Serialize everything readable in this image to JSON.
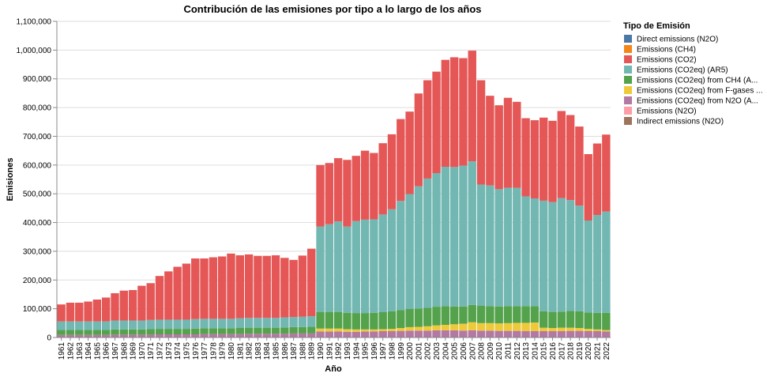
{
  "chart_data": {
    "type": "bar",
    "stacked": true,
    "title": "Contribución de las emisiones por tipo a lo largo de los años",
    "xlabel": "Año",
    "ylabel": "Emisiones",
    "ylim": [
      0,
      1100000
    ],
    "yticks": [
      "0",
      "100,000",
      "200,000",
      "300,000",
      "400,000",
      "500,000",
      "600,000",
      "700,000",
      "800,000",
      "900,000",
      "1,000,000",
      "1,100,000"
    ],
    "grid": true,
    "legend_title": "Tipo de Emisión",
    "legend_position": "right",
    "categories": [
      "1961",
      "1962",
      "1963",
      "1964",
      "1965",
      "1966",
      "1967",
      "1968",
      "1969",
      "1970",
      "1971",
      "1972",
      "1973",
      "1974",
      "1975",
      "1976",
      "1977",
      "1978",
      "1979",
      "1980",
      "1981",
      "1982",
      "1983",
      "1984",
      "1985",
      "1986",
      "1987",
      "1988",
      "1989",
      "1990",
      "1991",
      "1992",
      "1993",
      "1994",
      "1995",
      "1996",
      "1997",
      "1998",
      "1999",
      "2000",
      "2001",
      "2002",
      "2003",
      "2004",
      "2005",
      "2006",
      "2007",
      "2008",
      "2009",
      "2010",
      "2011",
      "2012",
      "2013",
      "2014",
      "2015",
      "2016",
      "2017",
      "2018",
      "2019",
      "2020",
      "2021",
      "2022"
    ],
    "series": [
      {
        "name": "Direct emissions (N2O)",
        "color": "#4c78a8",
        "values": [
          0,
          0,
          0,
          0,
          0,
          0,
          0,
          0,
          0,
          0,
          0,
          0,
          0,
          0,
          0,
          0,
          0,
          0,
          0,
          0,
          0,
          0,
          0,
          0,
          0,
          0,
          0,
          0,
          0,
          0,
          0,
          0,
          0,
          0,
          0,
          0,
          0,
          0,
          0,
          0,
          0,
          0,
          0,
          0,
          0,
          0,
          0,
          0,
          0,
          0,
          0,
          0,
          0,
          0,
          0,
          0,
          0,
          0,
          0,
          0,
          0,
          0
        ]
      },
      {
        "name": "Emissions (CH4)",
        "color": "#f58518",
        "values": [
          0,
          0,
          0,
          0,
          0,
          0,
          0,
          0,
          0,
          0,
          0,
          0,
          0,
          0,
          0,
          0,
          0,
          0,
          0,
          0,
          0,
          0,
          0,
          0,
          0,
          0,
          0,
          0,
          0,
          0,
          0,
          0,
          0,
          0,
          0,
          0,
          0,
          0,
          0,
          0,
          0,
          0,
          0,
          0,
          0,
          0,
          0,
          0,
          0,
          0,
          0,
          0,
          0,
          0,
          0,
          0,
          0,
          0,
          0,
          0,
          0,
          0
        ]
      },
      {
        "name": "Emissions (CO2)",
        "color": "#e45756",
        "values": [
          59000,
          65000,
          65000,
          69000,
          76000,
          83000,
          95000,
          104000,
          106000,
          121000,
          128000,
          152000,
          168000,
          184000,
          195000,
          211000,
          210000,
          214000,
          217000,
          227000,
          219000,
          221000,
          216000,
          216000,
          218000,
          207000,
          199000,
          213000,
          235000,
          214000,
          213000,
          220000,
          232000,
          227000,
          240000,
          231000,
          248000,
          261000,
          285000,
          287000,
          323000,
          342000,
          353000,
          372000,
          382000,
          374000,
          385000,
          363000,
          312000,
          292000,
          313000,
          299000,
          272000,
          272000,
          289000,
          283000,
          303000,
          296000,
          275000,
          231000,
          249000,
          268000
        ]
      },
      {
        "name": "Emissions (CO2eq) (AR5)",
        "color": "#72b7b2",
        "values": [
          30000,
          30000,
          30000,
          30000,
          30000,
          30000,
          31000,
          31000,
          31000,
          31000,
          32000,
          32000,
          32000,
          32000,
          32000,
          33000,
          33000,
          33000,
          33000,
          33000,
          34000,
          34000,
          34000,
          34000,
          34000,
          35000,
          35000,
          36000,
          37000,
          297000,
          305000,
          315000,
          300000,
          320000,
          325000,
          325000,
          340000,
          355000,
          380000,
          400000,
          425000,
          450000,
          465000,
          485000,
          485000,
          490000,
          500000,
          422000,
          420000,
          408000,
          412000,
          412000,
          382000,
          375000,
          385000,
          382000,
          395000,
          386000,
          368000,
          320000,
          340000,
          352000
        ]
      },
      {
        "name": "Emissions (CO2eq) from CH4 (AR5)",
        "color": "#54a24b",
        "values": [
          17000,
          17000,
          17000,
          17000,
          17000,
          17000,
          18000,
          18000,
          18000,
          18000,
          19000,
          19000,
          19000,
          19000,
          19000,
          20000,
          20000,
          20000,
          20000,
          20000,
          21000,
          21000,
          21000,
          21000,
          21000,
          22000,
          22000,
          22000,
          23000,
          58000,
          58000,
          58000,
          57000,
          57000,
          57000,
          58000,
          59000,
          61000,
          62000,
          63000,
          64000,
          64000,
          65000,
          65000,
          62000,
          60000,
          60000,
          60000,
          59000,
          59000,
          59000,
          58000,
          58000,
          57000,
          57000,
          56000,
          56000,
          58000,
          58000,
          57000,
          58000,
          60000
        ]
      },
      {
        "name": "Emissions (CO2eq) from F-gases (AR5)",
        "color": "#eeca3b",
        "values": [
          0,
          0,
          0,
          0,
          0,
          0,
          0,
          0,
          0,
          0,
          0,
          0,
          0,
          0,
          0,
          0,
          0,
          0,
          0,
          0,
          0,
          0,
          0,
          0,
          0,
          0,
          0,
          0,
          0,
          10000,
          10000,
          10000,
          9000,
          8000,
          7000,
          7000,
          7000,
          8000,
          10000,
          12000,
          13000,
          15000,
          17000,
          19000,
          21000,
          24000,
          28000,
          26000,
          26000,
          26000,
          27000,
          28000,
          29000,
          30000,
          12000,
          11000,
          12000,
          11000,
          10000,
          8000,
          6000,
          5000
        ]
      },
      {
        "name": "Emissions (CO2eq) from N2O (AR5)",
        "color": "#b279a2",
        "values": [
          9000,
          9000,
          9000,
          9000,
          9000,
          9000,
          10000,
          10000,
          10000,
          10000,
          10000,
          11000,
          11000,
          11000,
          11000,
          11000,
          12000,
          12000,
          12000,
          12000,
          12000,
          13000,
          13000,
          13000,
          13000,
          13000,
          14000,
          14000,
          14000,
          21000,
          21000,
          21000,
          20000,
          20000,
          21000,
          21000,
          22000,
          22000,
          23000,
          24000,
          24000,
          24000,
          25000,
          25000,
          25000,
          24000,
          25000,
          24000,
          24000,
          23000,
          23000,
          23000,
          22000,
          22000,
          22000,
          22000,
          22000,
          23000,
          23000,
          22000,
          22000,
          21000
        ]
      },
      {
        "name": "Emissions (N2O)",
        "color": "#ff9da6",
        "values": [
          0,
          0,
          0,
          0,
          0,
          0,
          0,
          0,
          0,
          0,
          0,
          0,
          0,
          0,
          0,
          0,
          0,
          0,
          0,
          0,
          0,
          0,
          0,
          0,
          0,
          0,
          0,
          0,
          0,
          0,
          0,
          0,
          0,
          0,
          0,
          0,
          0,
          0,
          0,
          0,
          0,
          0,
          0,
          0,
          0,
          0,
          0,
          0,
          0,
          0,
          0,
          0,
          0,
          0,
          0,
          0,
          0,
          0,
          0,
          0,
          0,
          0
        ]
      },
      {
        "name": "Indirect emissions (N2O)",
        "color": "#9d755d",
        "values": [
          0,
          0,
          0,
          0,
          0,
          0,
          0,
          0,
          0,
          0,
          0,
          0,
          0,
          0,
          0,
          0,
          0,
          0,
          0,
          0,
          0,
          0,
          0,
          0,
          0,
          0,
          0,
          0,
          0,
          0,
          0,
          0,
          0,
          0,
          0,
          0,
          0,
          0,
          0,
          0,
          0,
          0,
          0,
          0,
          0,
          0,
          0,
          0,
          0,
          0,
          0,
          0,
          0,
          0,
          0,
          0,
          0,
          0,
          0,
          0,
          0,
          0
        ]
      }
    ],
    "stack_order": [
      6,
      5,
      4,
      3,
      2
    ],
    "legend_labels": [
      "Direct emissions (N2O)",
      "Emissions (CH4)",
      "Emissions (CO2)",
      "Emissions (CO2eq) (AR5)",
      "Emissions (CO2eq) from CH4 (A...",
      "Emissions (CO2eq) from F-gases ...",
      "Emissions (CO2eq) from N2O (A...",
      "Emissions (N2O)",
      "Indirect emissions (N2O)"
    ]
  }
}
